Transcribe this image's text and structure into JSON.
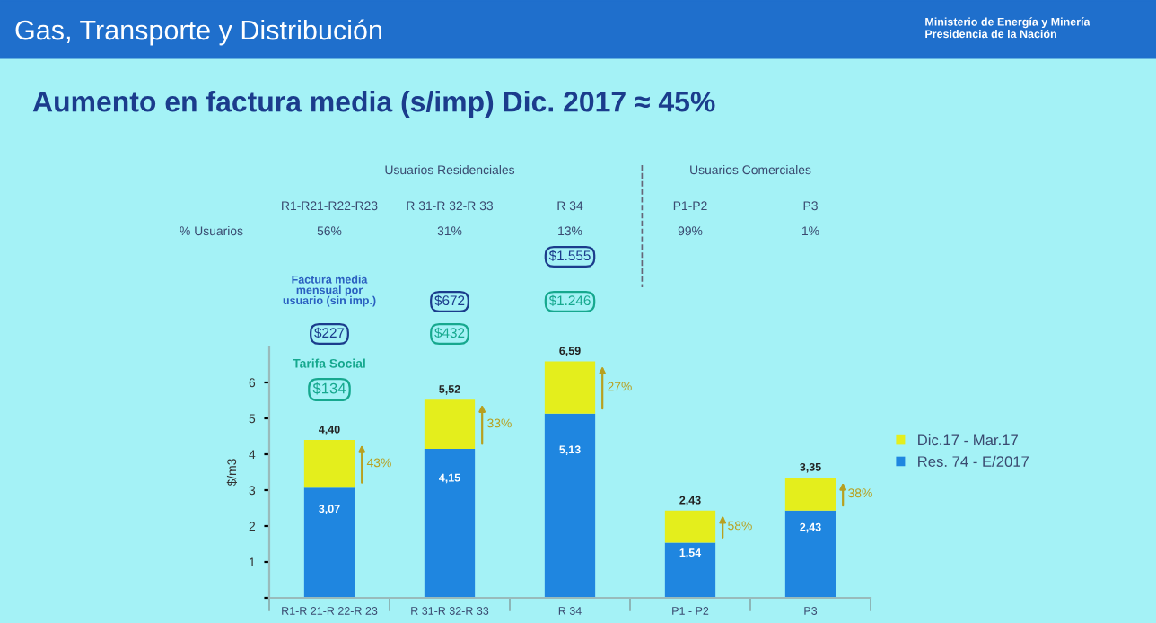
{
  "chart_data": {
    "type": "bar",
    "title": "Aumento en factura media (s/imp) Dic. 2017 ≈ 45%",
    "ylabel": "$/m3",
    "categories": [
      "R1-R 21-R 22-R 23",
      "R 31-R 32-R 33",
      "R 34",
      "P1 - P2",
      "P3"
    ],
    "stacked": true,
    "series": [
      {
        "name": "Res. 74 - E/2017",
        "color": "#1f86e0",
        "values": [
          3.07,
          4.15,
          5.13,
          1.54,
          2.43
        ],
        "value_labels": [
          "3,07",
          "4,15",
          "5,13",
          "1,54",
          "2,43"
        ]
      },
      {
        "name": "Dic.17 - Mar.17",
        "color": "#e4ee1c",
        "values": [
          1.33,
          1.37,
          1.46,
          0.89,
          0.92
        ]
      }
    ],
    "totals": [
      "4,40",
      "5,52",
      "6,59",
      "2,43",
      "3,35"
    ],
    "ylim": [
      0,
      7
    ],
    "yticks": [
      {
        "value": 0,
        "label": null
      },
      1,
      2,
      3,
      4,
      5,
      6
    ],
    "grid": false,
    "legend": "right",
    "annotations": [
      "Gas, Transporte y Distribución",
      "Ministerio de Energía y Minería\nPresidencia de la Nación",
      "Usuarios Residenciales",
      "Usuarios Comerciales",
      "R1-R21-R22-R23",
      "R 31-R 32-R 33",
      "R 34",
      "P1-P2",
      "P3",
      "% Usuarios",
      "56%",
      "31%",
      "13%",
      "99%",
      "1%",
      "Factura media\nmensual por\nusuario (sin imp.)",
      "$1.555",
      "$672",
      "$1.246",
      "$227",
      "$432",
      "Tarifa Social",
      "$134",
      "43%",
      "33%",
      "27%",
      "58%",
      "38%"
    ]
  }
}
